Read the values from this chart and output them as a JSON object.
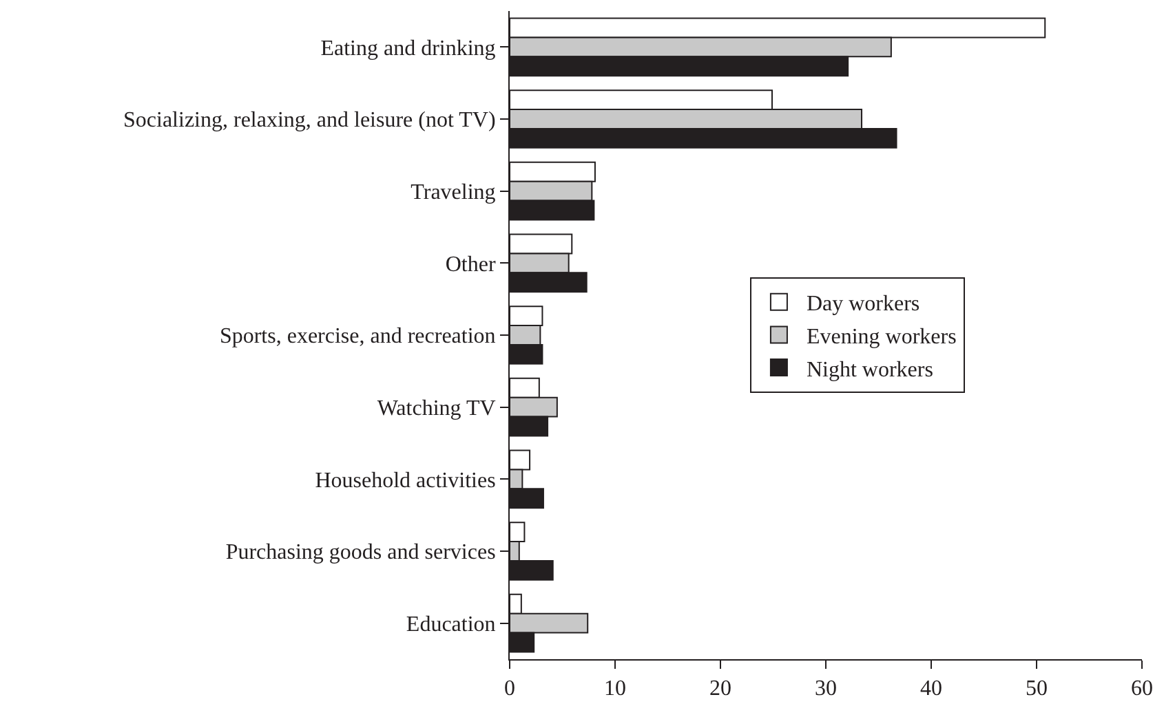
{
  "chart_data": {
    "type": "bar",
    "orientation": "horizontal",
    "categories": [
      "Eating and drinking",
      "Socializing, relaxing, and leisure (not TV)",
      "Traveling",
      "Other",
      "Sports, exercise, and recreation",
      "Watching TV",
      "Household activities",
      "Purchasing goods and services",
      "Education"
    ],
    "series": [
      {
        "name": "Day workers",
        "color": "#ffffff",
        "values": [
          50.8,
          24.9,
          8.1,
          5.9,
          3.1,
          2.8,
          1.9,
          1.4,
          1.1
        ]
      },
      {
        "name": "Evening workers",
        "color": "#c8c8c8",
        "values": [
          36.2,
          33.4,
          7.8,
          5.6,
          2.9,
          4.5,
          1.2,
          0.9,
          7.4
        ]
      },
      {
        "name": "Night workers",
        "color": "#231f20",
        "values": [
          32.1,
          36.7,
          8.0,
          7.3,
          3.1,
          3.6,
          3.2,
          4.1,
          2.3
        ]
      }
    ],
    "xlim": [
      0,
      60
    ],
    "xticks": [
      0,
      10,
      20,
      30,
      40,
      50,
      60
    ],
    "legend": "right"
  }
}
